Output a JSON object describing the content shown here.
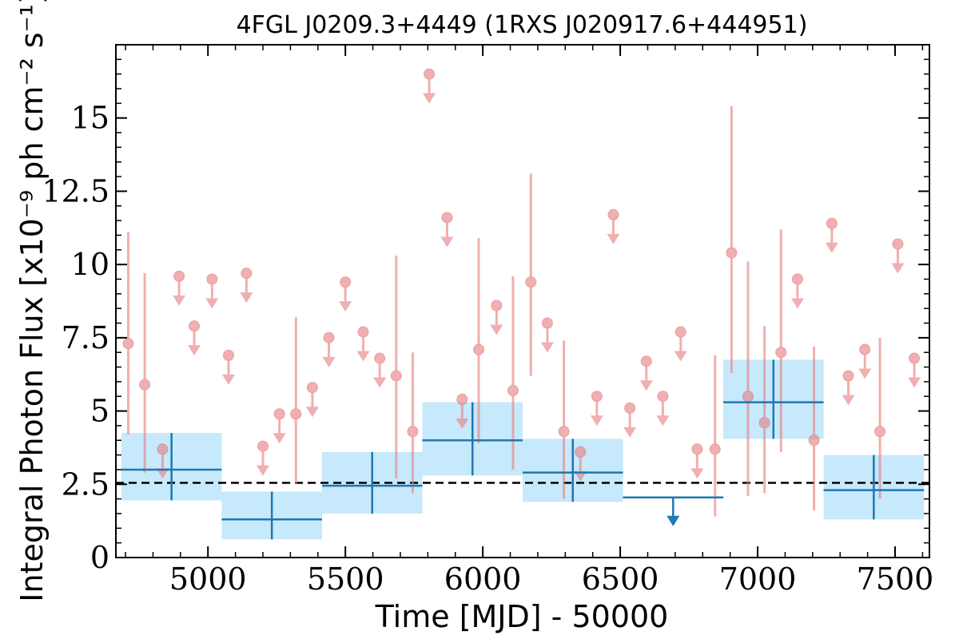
{
  "chart_data": {
    "type": "scatter",
    "title": "4FGL J0209.3+4449 (1RXS J020917.6+444951)",
    "xlabel": "Time [MJD] - 50000",
    "ylabel": "Integral Photon Flux [x10⁻⁹ ph cm⁻² s⁻¹]",
    "xlim": [
      4665,
      7625
    ],
    "ylim": [
      0,
      17.5
    ],
    "xticks": [
      5000,
      5500,
      6000,
      6500,
      7000,
      7500
    ],
    "yticks": [
      0,
      2.5,
      5,
      7.5,
      10,
      12.5,
      15
    ],
    "ytick_labels": [
      "0",
      "2.5",
      "5",
      "7.5",
      "10",
      "12.5",
      "15"
    ],
    "grid": false,
    "average_flux": 2.55,
    "colors": {
      "short_bins": "#e87f80",
      "long_bins": "#1f77b4",
      "long_band": "#c6e9fb",
      "average_line": "#000000"
    },
    "series": [
      {
        "points": [
          {
            "x": 4710,
            "y": 7.3,
            "lo": 4.2,
            "hi": 11.1
          },
          {
            "x": 4770,
            "y": 5.9,
            "lo": 2.9,
            "hi": 9.7
          },
          {
            "x": 4835,
            "y": 3.7,
            "ul": true
          },
          {
            "x": 4895,
            "y": 9.6,
            "ul": true
          },
          {
            "x": 4950,
            "y": 7.9,
            "ul": true
          },
          {
            "x": 5015,
            "y": 9.5,
            "ul": true
          },
          {
            "x": 5075,
            "y": 6.9,
            "ul": true
          },
          {
            "x": 5140,
            "y": 9.7,
            "ul": true
          },
          {
            "x": 5200,
            "y": 3.8,
            "ul": true
          },
          {
            "x": 5260,
            "y": 4.9,
            "ul": true
          },
          {
            "x": 5320,
            "y": 4.9,
            "lo": 2.5,
            "hi": 8.2
          },
          {
            "x": 5380,
            "y": 5.8,
            "ul": true
          },
          {
            "x": 5440,
            "y": 7.5,
            "ul": true
          },
          {
            "x": 5500,
            "y": 9.4,
            "ul": true
          },
          {
            "x": 5565,
            "y": 7.7,
            "ul": true
          },
          {
            "x": 5625,
            "y": 6.8,
            "ul": true
          },
          {
            "x": 5685,
            "y": 6.2,
            "lo": 2.7,
            "hi": 10.3
          },
          {
            "x": 5745,
            "y": 4.3,
            "lo": 2.2,
            "hi": 7.0
          },
          {
            "x": 5805,
            "y": 16.5,
            "ul": true
          },
          {
            "x": 5870,
            "y": 11.6,
            "ul": true
          },
          {
            "x": 5925,
            "y": 5.4,
            "ul": true
          },
          {
            "x": 5985,
            "y": 7.1,
            "lo": 3.9,
            "hi": 10.9
          },
          {
            "x": 6050,
            "y": 8.6,
            "ul": true
          },
          {
            "x": 6110,
            "y": 5.7,
            "lo": 3.0,
            "hi": 9.6
          },
          {
            "x": 6175,
            "y": 9.4,
            "lo": 6.2,
            "hi": 13.1
          },
          {
            "x": 6235,
            "y": 8.0,
            "ul": true
          },
          {
            "x": 6295,
            "y": 4.3,
            "lo": 2.0,
            "hi": 7.4
          },
          {
            "x": 6355,
            "y": 3.6,
            "ul": true
          },
          {
            "x": 6415,
            "y": 5.5,
            "ul": true
          },
          {
            "x": 6475,
            "y": 11.7,
            "ul": true
          },
          {
            "x": 6535,
            "y": 5.1,
            "ul": true
          },
          {
            "x": 6595,
            "y": 6.7,
            "ul": true
          },
          {
            "x": 6655,
            "y": 5.5,
            "ul": true
          },
          {
            "x": 6720,
            "y": 7.7,
            "ul": true
          },
          {
            "x": 6780,
            "y": 3.7,
            "ul": true
          },
          {
            "x": 6845,
            "y": 3.7,
            "lo": 1.4,
            "hi": 6.9
          },
          {
            "x": 6905,
            "y": 10.4,
            "lo": 6.3,
            "hi": 15.4
          },
          {
            "x": 6965,
            "y": 5.5,
            "lo": 2.1,
            "hi": 10.1
          },
          {
            "x": 7025,
            "y": 4.6,
            "lo": 2.2,
            "hi": 7.9
          },
          {
            "x": 7085,
            "y": 7.0,
            "lo": 3.6,
            "hi": 11.2
          },
          {
            "x": 7145,
            "y": 9.5,
            "ul": true
          },
          {
            "x": 7205,
            "y": 4.0,
            "lo": 1.6,
            "hi": 7.2
          },
          {
            "x": 7270,
            "y": 11.4,
            "ul": true
          },
          {
            "x": 7330,
            "y": 6.2,
            "ul": true
          },
          {
            "x": 7390,
            "y": 7.1,
            "ul": true
          },
          {
            "x": 7445,
            "y": 4.3,
            "lo": 2.0,
            "hi": 7.5
          },
          {
            "x": 7510,
            "y": 10.7,
            "ul": true
          },
          {
            "x": 7570,
            "y": 6.8,
            "ul": true
          }
        ]
      },
      {
        "bins": [
          {
            "x0": 4685,
            "x1": 5050,
            "y": 3.0,
            "ylo": 1.95,
            "yhi": 4.25,
            "ep_lo": 1.95,
            "ep_hi": 4.25
          },
          {
            "x0": 5050,
            "x1": 5415,
            "y": 1.3,
            "ylo": 0.62,
            "yhi": 2.25,
            "ep_lo": 0.62,
            "ep_hi": 2.25
          },
          {
            "x0": 5415,
            "x1": 5780,
            "y": 2.45,
            "ylo": 1.5,
            "yhi": 3.6,
            "ep_lo": 1.5,
            "ep_hi": 3.6
          },
          {
            "x0": 5780,
            "x1": 6145,
            "y": 4.0,
            "ylo": 2.8,
            "yhi": 5.3,
            "ep_lo": 2.8,
            "ep_hi": 5.3
          },
          {
            "x0": 6145,
            "x1": 6510,
            "y": 2.9,
            "ylo": 1.9,
            "yhi": 4.05,
            "ep_lo": 1.9,
            "ep_hi": 4.05
          },
          {
            "x0": 6510,
            "x1": 6875,
            "y": 2.05,
            "ul": true
          },
          {
            "x0": 6875,
            "x1": 7240,
            "y": 5.3,
            "ylo": 4.05,
            "yhi": 6.75,
            "ep_lo": 4.05,
            "ep_hi": 6.75
          },
          {
            "x0": 7240,
            "x1": 7605,
            "y": 2.3,
            "ylo": 1.3,
            "yhi": 3.5,
            "ep_lo": 1.3,
            "ep_hi": 3.5
          }
        ]
      }
    ]
  }
}
